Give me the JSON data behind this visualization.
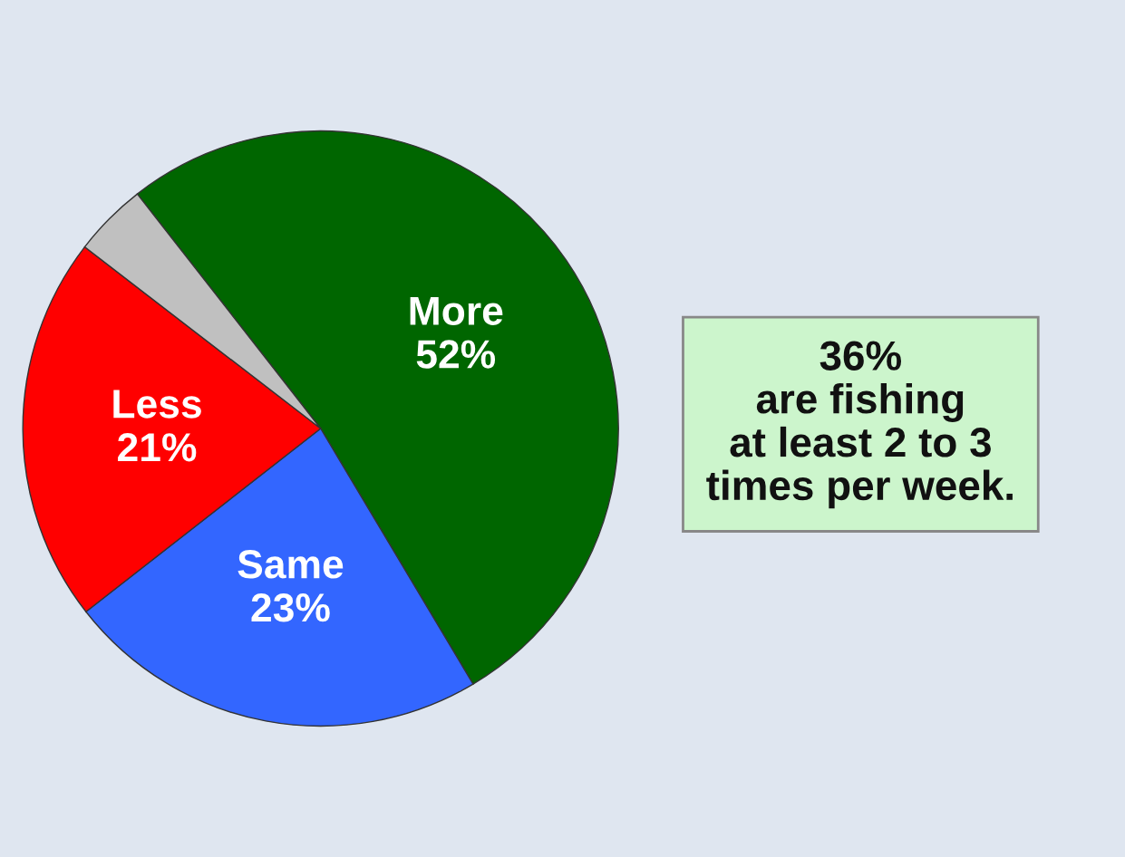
{
  "chart_data": {
    "type": "pie",
    "categories": [
      "More",
      "Same",
      "Less",
      null
    ],
    "values": [
      52,
      23,
      21,
      4
    ],
    "colors": [
      "#006600",
      "#3366ff",
      "#ff0000",
      "#c0c0c0"
    ],
    "value_labels": [
      "52%",
      "23%",
      "21%",
      null
    ],
    "annotations": [
      "36%\nare fishing\nat least 2 to 3\ntimes per week."
    ]
  }
}
